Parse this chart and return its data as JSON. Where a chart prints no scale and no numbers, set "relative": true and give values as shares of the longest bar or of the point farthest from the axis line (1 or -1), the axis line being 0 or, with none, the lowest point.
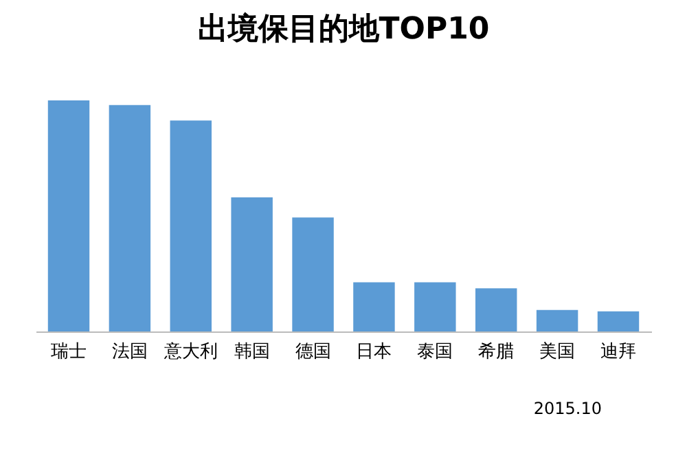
{
  "chart_data": {
    "type": "bar",
    "title": "出境保目的地TOP10",
    "categories": [
      "瑞士",
      "法国",
      "意大利",
      "韩国",
      "德国",
      "日本",
      "泰国",
      "希腊",
      "美国",
      "迪拜"
    ],
    "values": [
      1,
      0.98,
      0.913,
      0.58,
      0.493,
      0.213,
      0.213,
      0.187,
      0.093,
      0.087
    ],
    "color": "#5b9bd5",
    "relative": true,
    "grid": false,
    "annotations": [
      "2015.10"
    ]
  }
}
